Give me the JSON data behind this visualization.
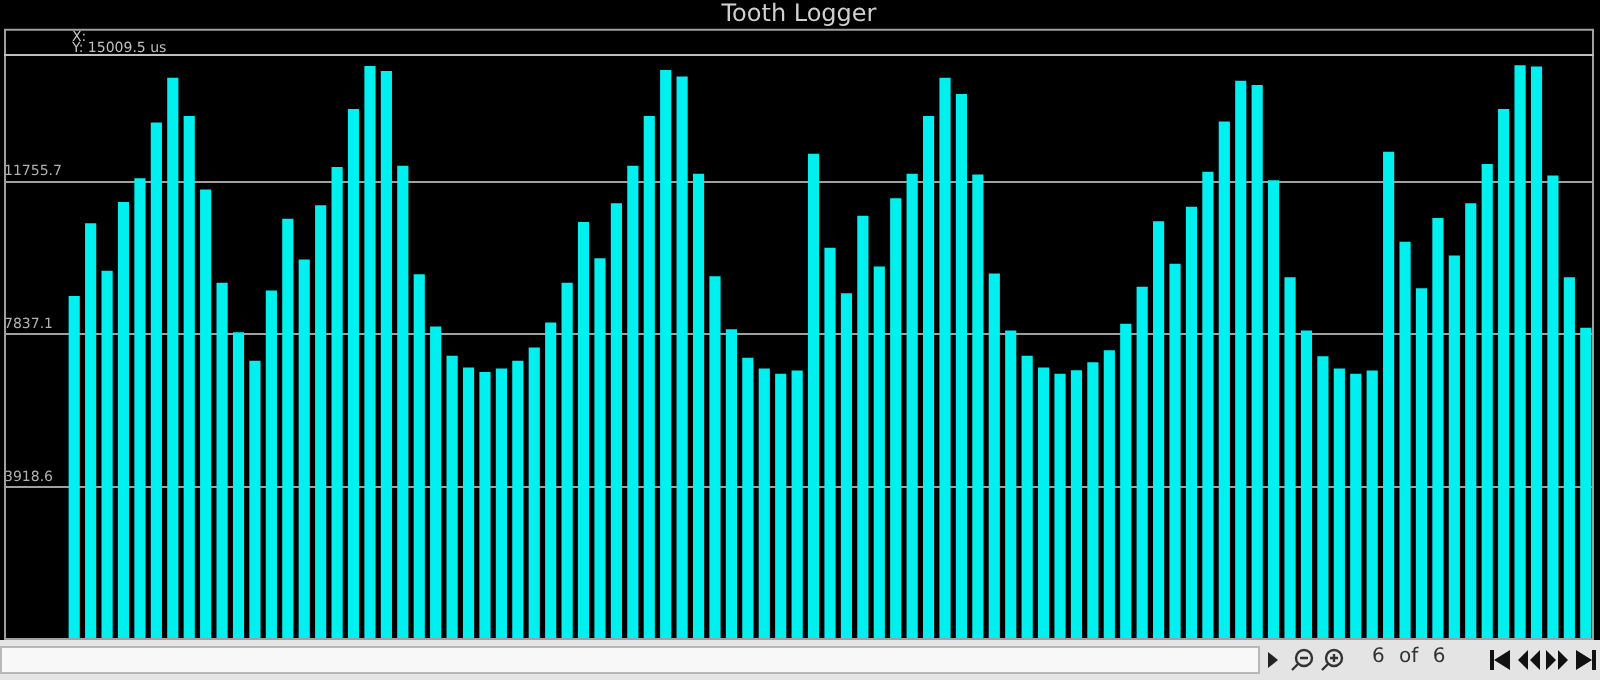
{
  "chart_data": {
    "type": "bar",
    "title": "Tooth Logger",
    "categories": [
      null,
      null,
      null,
      null,
      null,
      null,
      null,
      null,
      null,
      null,
      null,
      null,
      null,
      null,
      null,
      null,
      null,
      null,
      null,
      null,
      null,
      null,
      null,
      null,
      null,
      null,
      null,
      null,
      null,
      null,
      null,
      null,
      null,
      null,
      null,
      null,
      null,
      null,
      null,
      null,
      null,
      null,
      null,
      null,
      null,
      null,
      null,
      null,
      null,
      null,
      null,
      null,
      null,
      null,
      null,
      null,
      null,
      null,
      null,
      null,
      null,
      null,
      null,
      null,
      null,
      null,
      null,
      null,
      null,
      null,
      null,
      null,
      null,
      null,
      null,
      null,
      null,
      null,
      null,
      null,
      null,
      null,
      null,
      null,
      null,
      null,
      null,
      null,
      null,
      null,
      null,
      null,
      null
    ],
    "values": [
      8820,
      10690,
      9470,
      11230,
      11840,
      13270,
      14420,
      13440,
      11550,
      9160,
      7890,
      7160,
      8960,
      10800,
      9760,
      11150,
      12130,
      13620,
      14720,
      14590,
      12160,
      9380,
      8040,
      7290,
      6990,
      6870,
      6960,
      7160,
      7500,
      8140,
      9160,
      10720,
      9790,
      11200,
      12160,
      13440,
      14620,
      14450,
      11960,
      9330,
      7970,
      7240,
      6960,
      6830,
      6910,
      12470,
      10060,
      8890,
      10880,
      9580,
      11330,
      11960,
      13440,
      14420,
      14000,
      11940,
      9400,
      7940,
      7290,
      6990,
      6830,
      6920,
      7120,
      7430,
      8110,
      9060,
      10740,
      9650,
      11110,
      12010,
      13300,
      14340,
      14230,
      11790,
      9300,
      7940,
      7280,
      6960,
      6830,
      6910,
      12520,
      10210,
      9020,
      10820,
      9860,
      11200,
      12210,
      13620,
      14740,
      14710,
      11910,
      9300,
      8010
    ],
    "color": "#00f0f0",
    "ylim": [
      0,
      15674.3
    ],
    "yticks": [
      3918.6,
      7837.1,
      11755.7
    ],
    "grid": "y",
    "legend": false,
    "tick_labels": "y",
    "ref_lines": [
      {
        "axis": "y",
        "value": 15009.5,
        "label": "Y: 15009.5 us",
        "color": "#c0c0c0"
      }
    ],
    "annotations": [
      "X:",
      "6 of 6"
    ]
  }
}
